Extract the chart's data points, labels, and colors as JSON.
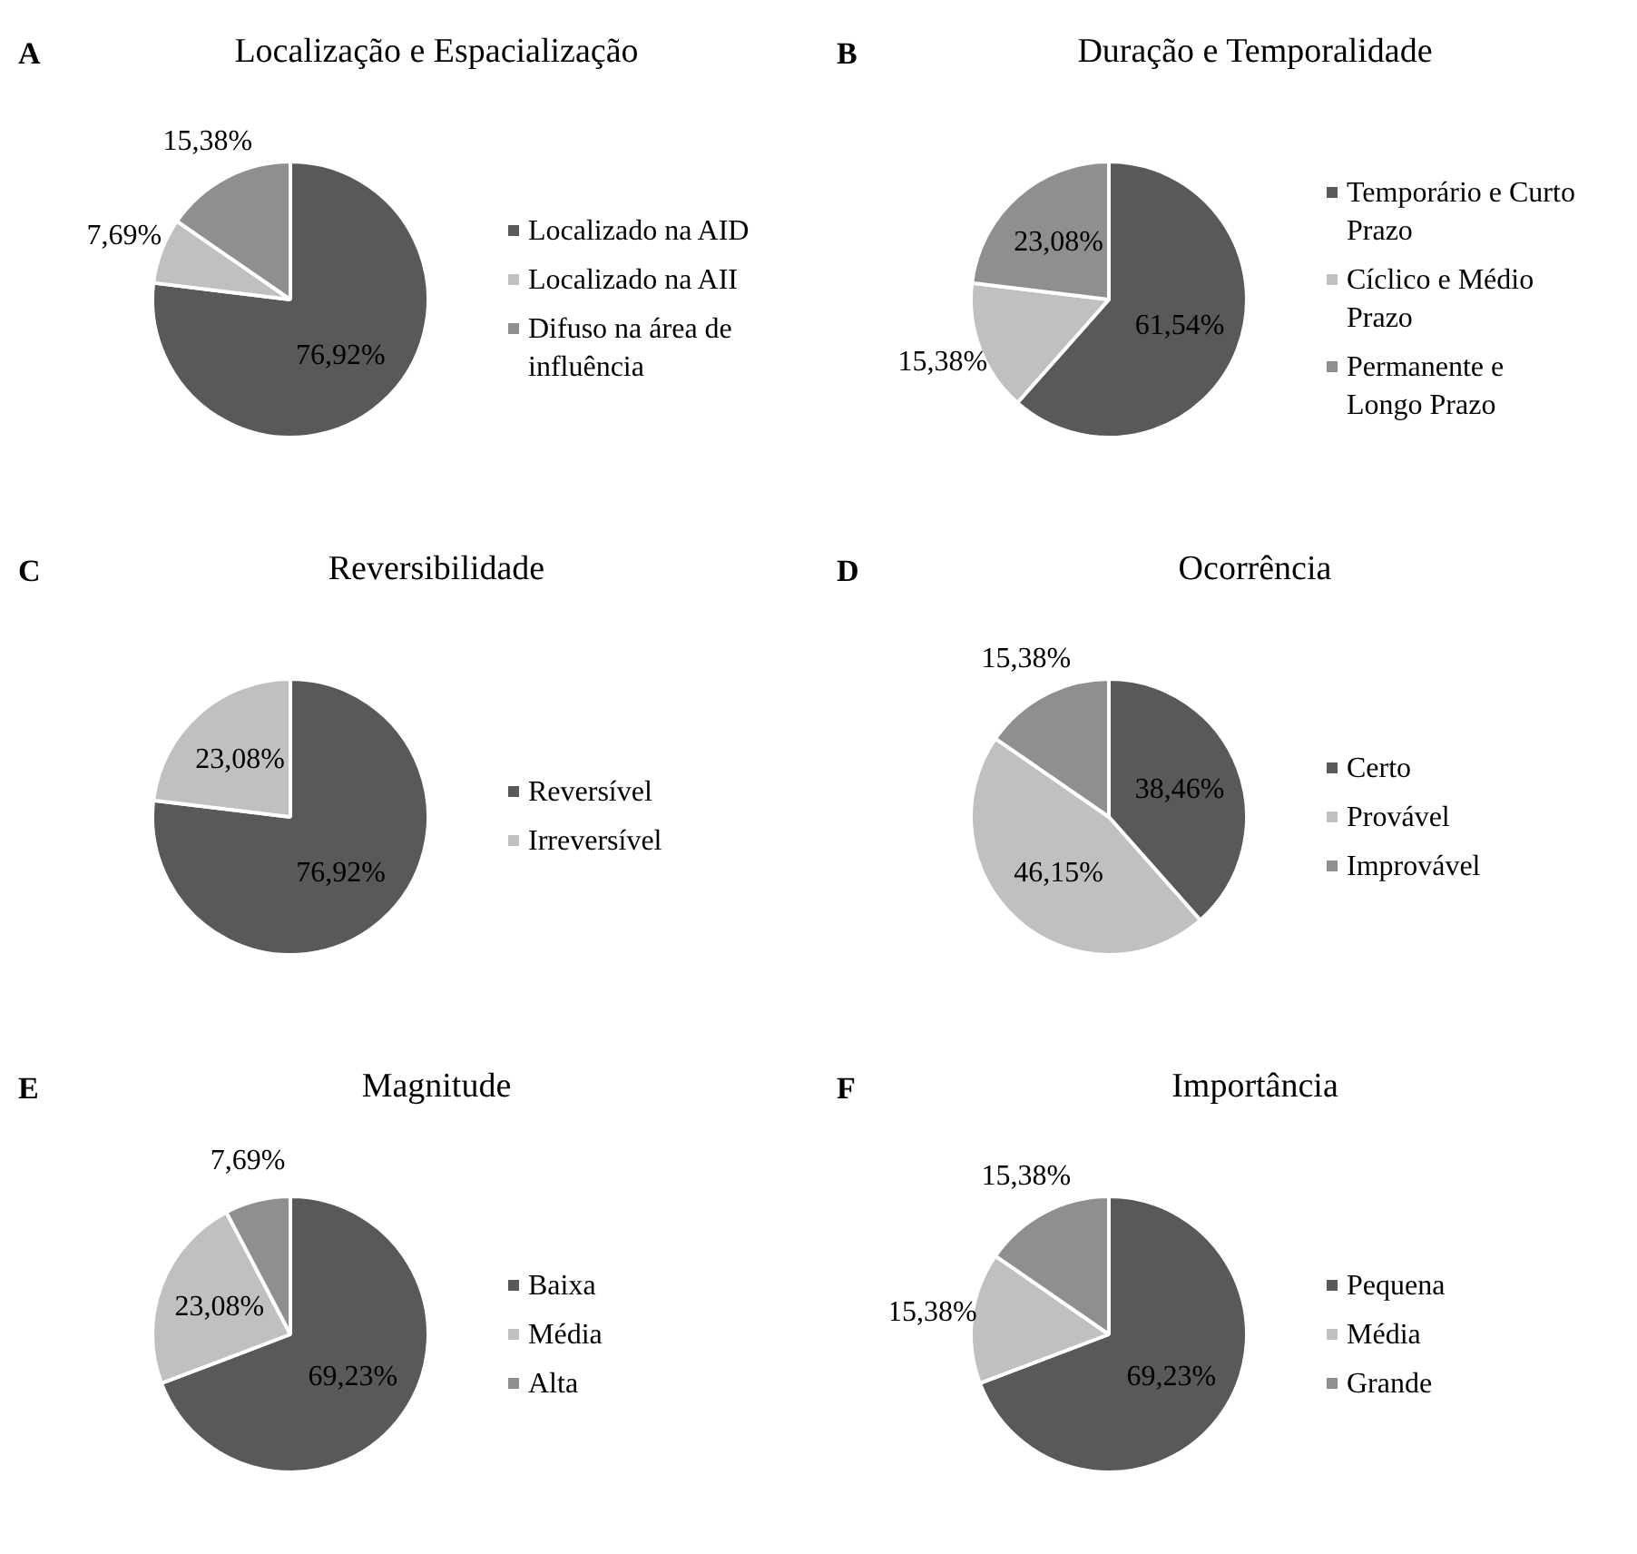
{
  "chart_data": [
    {
      "type": "pie",
      "title": "Localização e Espacialização",
      "annotations": [
        "A"
      ],
      "categories": [
        "Localizado na AID",
        "Localizado na AII",
        "Difuso na área de influência"
      ],
      "values": [
        76.92,
        7.69,
        15.38
      ],
      "value_labels": [
        "76,92%",
        "7,69%",
        "15,38%"
      ],
      "colors": [
        "#595959",
        "#c0c0c0",
        "#8f8f8f"
      ],
      "legend": "right"
    },
    {
      "type": "pie",
      "title": "Duração e Temporalidade",
      "annotations": [
        "B"
      ],
      "categories": [
        "Temporário e Curto Prazo",
        "Cíclico e Médio Prazo",
        "Permanente e Longo Prazo"
      ],
      "values": [
        61.54,
        15.38,
        23.08
      ],
      "value_labels": [
        "61,54%",
        "15,38%",
        "23,08%"
      ],
      "colors": [
        "#595959",
        "#c0c0c0",
        "#8f8f8f"
      ],
      "legend": "right"
    },
    {
      "type": "pie",
      "title": "Reversibilidade",
      "annotations": [
        "C"
      ],
      "categories": [
        "Reversível",
        "Irreversível"
      ],
      "values": [
        76.92,
        23.08
      ],
      "value_labels": [
        "76,92%",
        "23,08%"
      ],
      "colors": [
        "#595959",
        "#c0c0c0"
      ],
      "legend": "right"
    },
    {
      "type": "pie",
      "title": "Ocorrência",
      "annotations": [
        "D"
      ],
      "categories": [
        "Certo",
        "Provável",
        "Improvável"
      ],
      "values": [
        38.46,
        46.15,
        15.38
      ],
      "value_labels": [
        "38,46%",
        "46,15%",
        "15,38%"
      ],
      "colors": [
        "#595959",
        "#c0c0c0",
        "#8f8f8f"
      ],
      "legend": "right"
    },
    {
      "type": "pie",
      "title": "Magnitude",
      "annotations": [
        "E"
      ],
      "categories": [
        "Baixa",
        "Média",
        "Alta"
      ],
      "values": [
        69.23,
        23.08,
        7.69
      ],
      "value_labels": [
        "69,23%",
        "23,08%",
        "7,69%"
      ],
      "colors": [
        "#595959",
        "#c0c0c0",
        "#8f8f8f"
      ],
      "legend": "right"
    },
    {
      "type": "pie",
      "title": "Importância",
      "annotations": [
        "F"
      ],
      "categories": [
        "Pequena",
        "Média",
        "Grande"
      ],
      "values": [
        69.23,
        15.38,
        15.38
      ],
      "value_labels": [
        "69,23%",
        "15,38%",
        "15,38%"
      ],
      "colors": [
        "#595959",
        "#c0c0c0",
        "#8f8f8f"
      ],
      "legend": "right"
    }
  ]
}
